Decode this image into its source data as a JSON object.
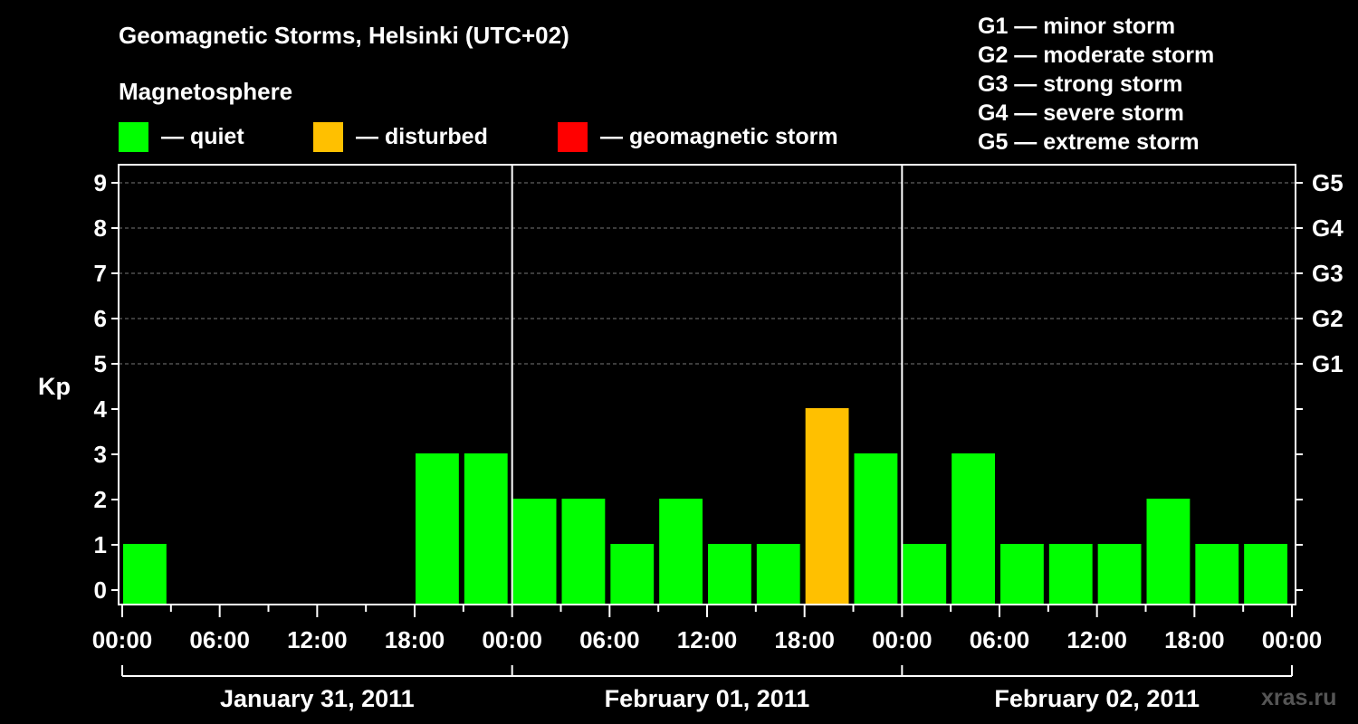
{
  "title": "Geomagnetic Storms, Helsinki (UTC+02)",
  "magnetosphere": {
    "title": "Magnetosphere",
    "items": [
      {
        "label": "— quiet",
        "color": "#00ff00"
      },
      {
        "label": "— disturbed",
        "color": "#ffc000"
      },
      {
        "label": "— geomagnetic storm",
        "color": "#ff0000"
      }
    ]
  },
  "storm_scale": [
    "G1 — minor storm",
    "G2 — moderate storm",
    "G3 — strong storm",
    "G4 — severe storm",
    "G5 — extreme storm"
  ],
  "watermark": "xras.ru",
  "chart_data": {
    "type": "bar",
    "ylabel": "Kp",
    "ylim": [
      0,
      9
    ],
    "yticks": [
      0,
      1,
      2,
      3,
      4,
      5,
      6,
      7,
      8,
      9
    ],
    "right_ticks": [
      {
        "kp": 5,
        "label": "G1"
      },
      {
        "kp": 6,
        "label": "G2"
      },
      {
        "kp": 7,
        "label": "G3"
      },
      {
        "kp": 8,
        "label": "G4"
      },
      {
        "kp": 9,
        "label": "G5"
      }
    ],
    "xtick_labels": [
      "00:00",
      "06:00",
      "12:00",
      "18:00",
      "00:00",
      "06:00",
      "12:00",
      "18:00",
      "00:00",
      "06:00",
      "12:00",
      "18:00",
      "00:00"
    ],
    "days": [
      "January 31, 2011",
      "February 01, 2011",
      "February 02, 2011"
    ],
    "hours_total": 72,
    "bars": [
      {
        "start_hour": 0,
        "kp": 1,
        "status": "quiet"
      },
      {
        "start_hour": 18,
        "kp": 3,
        "status": "quiet"
      },
      {
        "start_hour": 21,
        "kp": 3,
        "status": "quiet"
      },
      {
        "start_hour": 24,
        "kp": 2,
        "status": "quiet"
      },
      {
        "start_hour": 27,
        "kp": 2,
        "status": "quiet"
      },
      {
        "start_hour": 30,
        "kp": 1,
        "status": "quiet"
      },
      {
        "start_hour": 33,
        "kp": 2,
        "status": "quiet"
      },
      {
        "start_hour": 36,
        "kp": 1,
        "status": "quiet"
      },
      {
        "start_hour": 39,
        "kp": 1,
        "status": "quiet"
      },
      {
        "start_hour": 42,
        "kp": 4,
        "status": "disturbed"
      },
      {
        "start_hour": 45,
        "kp": 3,
        "status": "quiet"
      },
      {
        "start_hour": 48,
        "kp": 1,
        "status": "quiet"
      },
      {
        "start_hour": 51,
        "kp": 3,
        "status": "quiet"
      },
      {
        "start_hour": 54,
        "kp": 1,
        "status": "quiet"
      },
      {
        "start_hour": 57,
        "kp": 1,
        "status": "quiet"
      },
      {
        "start_hour": 60,
        "kp": 1,
        "status": "quiet"
      },
      {
        "start_hour": 63,
        "kp": 2,
        "status": "quiet"
      },
      {
        "start_hour": 66,
        "kp": 1,
        "status": "quiet"
      },
      {
        "start_hour": 69,
        "kp": 1,
        "status": "quiet"
      }
    ],
    "colors": {
      "quiet": "#00ff00",
      "disturbed": "#ffc000",
      "storm": "#ff0000"
    },
    "grid": "dashed at Kp 5-9"
  }
}
